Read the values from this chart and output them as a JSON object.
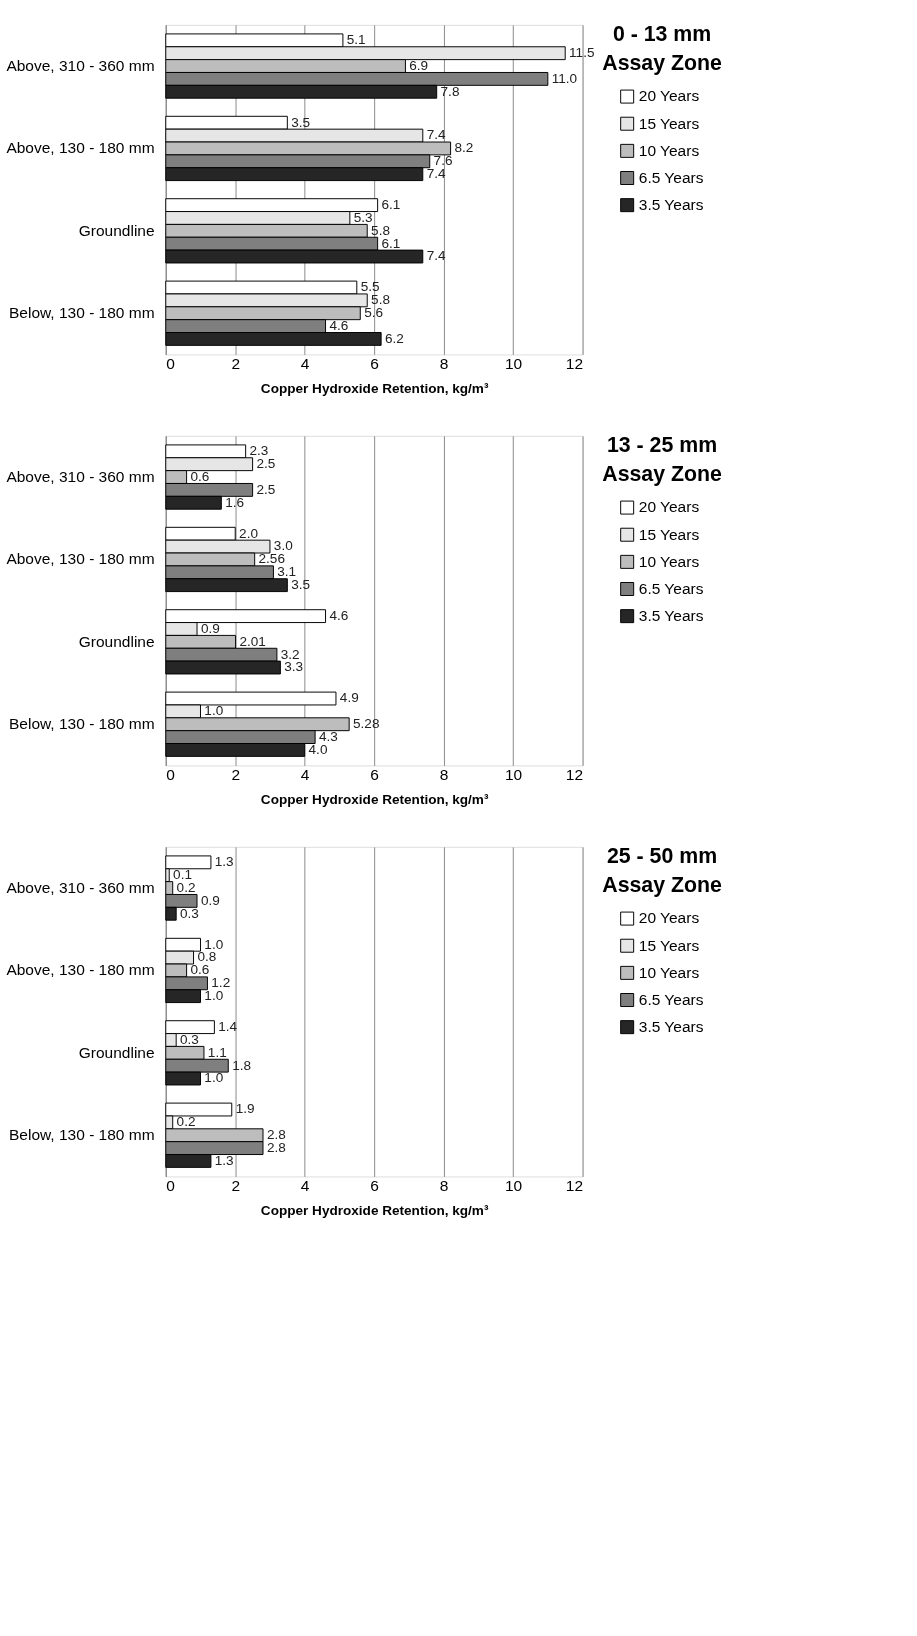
{
  "chart_data": [
    {
      "type": "bar",
      "orientation": "horizontal",
      "legend_title": "0 - 13 mm Assay Zone",
      "xlabel": "Copper Hydroxide Retention, kg/m³",
      "categories": [
        "Above, 310 - 360 mm",
        "Above, 130 - 180 mm",
        "Groundline",
        "Below, 130 - 180 mm"
      ],
      "xlim": [
        0,
        12
      ],
      "xticks": [
        0,
        2,
        4,
        6,
        8,
        10,
        12
      ],
      "grid": "x",
      "legend": "right",
      "series": [
        {
          "name": "20 Years",
          "color": "#ffffff",
          "values": [
            5.1,
            3.5,
            6.1,
            5.5
          ],
          "value_labels": [
            "5.1",
            "3.5",
            "6.1",
            "5.5"
          ]
        },
        {
          "name": "15 Years",
          "color": "#e6e6e6",
          "values": [
            11.5,
            7.4,
            5.3,
            5.8
          ],
          "value_labels": [
            "11.5",
            "7.4",
            "5.3",
            "5.8"
          ]
        },
        {
          "name": "10 Years",
          "color": "#bdbdbd",
          "values": [
            6.9,
            8.2,
            5.8,
            5.6
          ],
          "value_labels": [
            "6.9",
            "8.2",
            "5.8",
            "5.6"
          ]
        },
        {
          "name": "6.5 Years",
          "color": "#7f7f7f",
          "values": [
            11.0,
            7.6,
            6.1,
            4.6
          ],
          "value_labels": [
            "11.0",
            "7.6",
            "6.1",
            "4.6"
          ]
        },
        {
          "name": "3.5 Years",
          "color": "#262626",
          "values": [
            7.8,
            7.4,
            7.4,
            6.2
          ],
          "value_labels": [
            "7.8",
            "7.4",
            "7.4",
            "6.2"
          ]
        }
      ]
    },
    {
      "type": "bar",
      "orientation": "horizontal",
      "legend_title": "13 - 25 mm Assay Zone",
      "xlabel": "Copper Hydroxide Retention, kg/m³",
      "categories": [
        "Above, 310 - 360 mm",
        "Above, 130 - 180 mm",
        "Groundline",
        "Below, 130 - 180 mm"
      ],
      "xlim": [
        0,
        12
      ],
      "xticks": [
        0,
        2,
        4,
        6,
        8,
        10,
        12
      ],
      "grid": "x",
      "legend": "right",
      "series": [
        {
          "name": "20 Years",
          "color": "#ffffff",
          "values": [
            2.3,
            2.0,
            4.6,
            4.9
          ],
          "value_labels": [
            "2.3",
            "2.0",
            "4.6",
            "4.9"
          ]
        },
        {
          "name": "15 Years",
          "color": "#e6e6e6",
          "values": [
            2.5,
            3.0,
            0.9,
            1.0
          ],
          "value_labels": [
            "2.5",
            "3.0",
            "0.9",
            "1.0"
          ]
        },
        {
          "name": "10 Years",
          "color": "#bdbdbd",
          "values": [
            0.6,
            2.56,
            2.01,
            5.28
          ],
          "value_labels": [
            "0.6",
            "2.56",
            "2.01",
            "5.28"
          ]
        },
        {
          "name": "6.5 Years",
          "color": "#7f7f7f",
          "values": [
            2.5,
            3.1,
            3.2,
            4.3
          ],
          "value_labels": [
            "2.5",
            "3.1",
            "3.2",
            "4.3"
          ]
        },
        {
          "name": "3.5 Years",
          "color": "#262626",
          "values": [
            1.6,
            3.5,
            3.3,
            4.0
          ],
          "value_labels": [
            "1.6",
            "3.5",
            "3.3",
            "4.0"
          ]
        }
      ]
    },
    {
      "type": "bar",
      "orientation": "horizontal",
      "legend_title": "25 - 50 mm Assay Zone",
      "xlabel": "Copper Hydroxide Retention, kg/m³",
      "categories": [
        "Above, 310 - 360 mm",
        "Above, 130 - 180 mm",
        "Groundline",
        "Below, 130 - 180 mm"
      ],
      "xlim": [
        0,
        12
      ],
      "xticks": [
        0,
        2,
        4,
        6,
        8,
        10,
        12
      ],
      "grid": "x",
      "legend": "right",
      "series": [
        {
          "name": "20 Years",
          "color": "#ffffff",
          "values": [
            1.3,
            1.0,
            1.4,
            1.9
          ],
          "value_labels": [
            "1.3",
            "1.0",
            "1.4",
            "1.9"
          ]
        },
        {
          "name": "15 Years",
          "color": "#e6e6e6",
          "values": [
            0.1,
            0.8,
            0.3,
            0.2
          ],
          "value_labels": [
            "0.1",
            "0.8",
            "0.3",
            "0.2"
          ]
        },
        {
          "name": "10 Years",
          "color": "#bdbdbd",
          "values": [
            0.2,
            0.6,
            1.1,
            2.8
          ],
          "value_labels": [
            "0.2",
            "0.6",
            "1.1",
            "2.8"
          ]
        },
        {
          "name": "6.5 Years",
          "color": "#7f7f7f",
          "values": [
            0.9,
            1.2,
            1.8,
            2.8
          ],
          "value_labels": [
            "0.9",
            "1.2",
            "1.8",
            "2.8"
          ]
        },
        {
          "name": "3.5 Years",
          "color": "#262626",
          "values": [
            0.3,
            1.0,
            1.0,
            1.3
          ],
          "value_labels": [
            "0.3",
            "1.0",
            "1.0",
            "1.3"
          ]
        }
      ]
    }
  ]
}
